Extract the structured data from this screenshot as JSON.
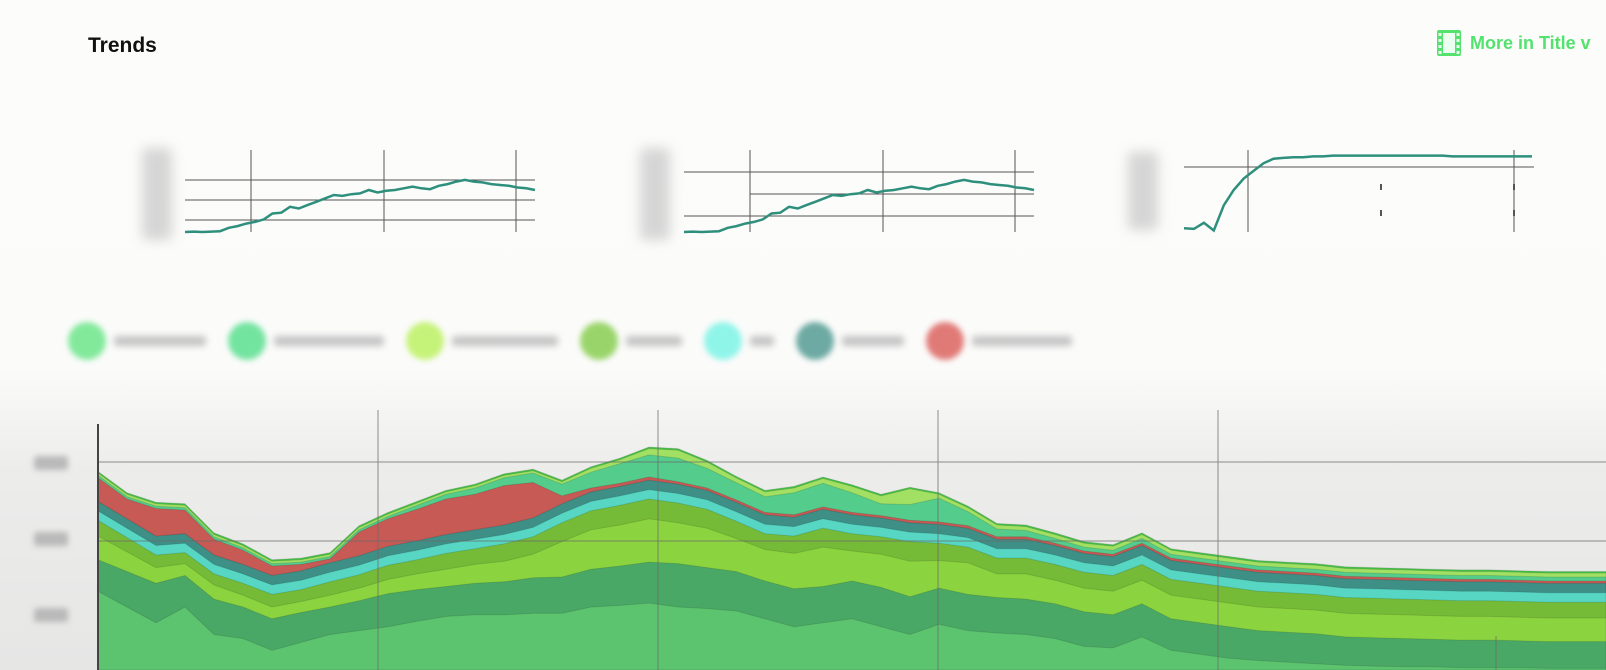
{
  "page": {
    "title": "Trends",
    "more_link": {
      "label": "More in Title v",
      "icon": "film-strip-icon",
      "color": "#54e26f"
    }
  },
  "colors": {
    "sparkline": "#2f8f7d",
    "grid": "#555555"
  },
  "chart_data": [
    {
      "type": "line",
      "x": [
        0,
        1,
        2,
        3,
        4,
        5,
        6,
        7,
        8,
        9,
        10,
        11,
        12,
        13,
        14,
        15,
        16,
        17,
        18,
        19,
        20,
        21,
        22,
        23,
        24,
        25,
        26,
        27,
        28,
        29,
        30,
        31,
        32,
        33,
        34,
        35,
        36,
        37,
        38,
        39,
        40
      ],
      "values": [
        0,
        0.5,
        0,
        0.5,
        1,
        5,
        7,
        10,
        12,
        15,
        22,
        23,
        30,
        28,
        32,
        36,
        40,
        44,
        43,
        45,
        46,
        50,
        47,
        49,
        50,
        52,
        54,
        52,
        51,
        55,
        57,
        60,
        62,
        60,
        59,
        57,
        56,
        55,
        53,
        52,
        50
      ],
      "ylim": [
        0,
        100
      ]
    },
    {
      "type": "line",
      "x": [
        0,
        1,
        2,
        3,
        4,
        5,
        6,
        7,
        8,
        9,
        10,
        11,
        12,
        13,
        14,
        15,
        16,
        17,
        18,
        19,
        20,
        21,
        22,
        23,
        24,
        25,
        26,
        27,
        28,
        29,
        30,
        31,
        32,
        33,
        34,
        35,
        36,
        37,
        38,
        39,
        40
      ],
      "values": [
        0,
        0.5,
        0,
        0.5,
        1,
        5,
        7,
        10,
        12,
        15,
        22,
        23,
        30,
        28,
        32,
        36,
        40,
        44,
        43,
        45,
        46,
        50,
        47,
        49,
        50,
        52,
        54,
        52,
        51,
        55,
        57,
        60,
        62,
        60,
        59,
        57,
        56,
        55,
        53,
        52,
        50
      ],
      "ylim": [
        0,
        100
      ]
    },
    {
      "type": "line",
      "x": [
        0,
        1,
        2,
        3,
        4,
        5,
        6,
        7,
        8,
        9,
        10,
        11,
        12,
        13,
        14,
        15,
        16,
        17,
        18,
        19,
        20,
        21,
        22,
        23,
        24,
        25,
        26,
        27,
        28,
        29,
        30,
        31,
        32,
        33,
        34,
        35
      ],
      "values": [
        5,
        4,
        12,
        2,
        35,
        55,
        70,
        80,
        90,
        96,
        97,
        98,
        98,
        99,
        99,
        100,
        100,
        100,
        100,
        100,
        100,
        100,
        100,
        100,
        100,
        100,
        100,
        99,
        99,
        99,
        99,
        99,
        99,
        99,
        99,
        99
      ],
      "ylim": [
        0,
        110
      ]
    },
    {
      "type": "area",
      "stacked": true,
      "x": [
        0,
        1,
        2,
        3,
        4,
        5,
        6,
        7,
        8,
        9,
        10,
        11,
        12,
        13,
        14,
        15,
        16,
        17,
        18,
        19,
        20,
        21,
        22,
        23,
        24,
        25,
        26,
        27,
        28,
        29,
        30,
        31,
        32,
        33,
        34,
        35,
        36,
        37,
        38,
        39,
        40,
        41,
        42,
        43,
        44,
        45,
        46,
        47,
        48,
        49,
        50,
        51,
        52
      ],
      "series": [
        {
          "color": "#5cc36f",
          "values": [
            100,
            80,
            60,
            80,
            45,
            40,
            25,
            35,
            45,
            50,
            55,
            62,
            68,
            70,
            70,
            72,
            72,
            80,
            82,
            85,
            80,
            78,
            75,
            65,
            55,
            60,
            65,
            55,
            45,
            58,
            50,
            47,
            45,
            40,
            30,
            28,
            42,
            25,
            20,
            15,
            12,
            10,
            8,
            6,
            5,
            4,
            4,
            3,
            3,
            3,
            2,
            2,
            2
          ]
        },
        {
          "color": "#4aa867",
          "values": [
            40,
            45,
            50,
            40,
            45,
            40,
            40,
            38,
            35,
            38,
            42,
            40,
            38,
            40,
            42,
            45,
            46,
            48,
            50,
            52,
            55,
            52,
            50,
            48,
            48,
            46,
            48,
            50,
            48,
            46,
            46,
            45,
            45,
            44,
            44,
            42,
            42,
            40,
            40,
            40,
            38,
            38,
            38,
            36,
            36,
            36,
            35,
            35,
            35,
            34,
            34,
            34,
            34
          ]
        },
        {
          "color": "#8bd43f",
          "values": [
            30,
            25,
            20,
            15,
            18,
            15,
            15,
            14,
            15,
            16,
            18,
            20,
            22,
            24,
            26,
            30,
            45,
            50,
            52,
            55,
            52,
            50,
            42,
            40,
            45,
            50,
            38,
            42,
            45,
            35,
            40,
            30,
            32,
            30,
            30,
            30,
            30,
            30,
            30,
            30,
            30,
            30,
            30,
            30,
            30,
            30,
            30,
            30,
            30,
            30,
            30,
            30,
            30
          ]
        },
        {
          "color": "#76bb38",
          "values": [
            20,
            18,
            16,
            14,
            14,
            15,
            16,
            15,
            17,
            17,
            18,
            18,
            20,
            20,
            22,
            22,
            24,
            24,
            25,
            25,
            25,
            24,
            22,
            20,
            22,
            24,
            22,
            22,
            25,
            22,
            20,
            20,
            20,
            20,
            20,
            20,
            20,
            20,
            20,
            20,
            20,
            20,
            20,
            20,
            20,
            20,
            20,
            20,
            20,
            20,
            20,
            20,
            20
          ]
        },
        {
          "color": "#56d6c3",
          "values": [
            12,
            12,
            12,
            12,
            12,
            12,
            12,
            12,
            12,
            12,
            12,
            12,
            12,
            12,
            12,
            12,
            12,
            12,
            12,
            12,
            12,
            12,
            12,
            12,
            12,
            12,
            12,
            12,
            12,
            12,
            12,
            12,
            12,
            12,
            12,
            12,
            12,
            12,
            12,
            12,
            12,
            12,
            12,
            12,
            12,
            12,
            12,
            12,
            12,
            12,
            12,
            12,
            12
          ]
        },
        {
          "color": "#3e8f86",
          "values": [
            12,
            12,
            12,
            12,
            12,
            12,
            12,
            12,
            12,
            12,
            12,
            12,
            12,
            12,
            12,
            12,
            12,
            12,
            12,
            12,
            12,
            12,
            12,
            12,
            12,
            12,
            12,
            12,
            12,
            12,
            12,
            12,
            12,
            12,
            12,
            12,
            12,
            12,
            12,
            12,
            12,
            12,
            12,
            12,
            12,
            12,
            12,
            12,
            12,
            12,
            12,
            12,
            12
          ]
        },
        {
          "color": "#c85a55",
          "values": [
            30,
            25,
            35,
            30,
            20,
            18,
            12,
            8,
            5,
            30,
            35,
            40,
            45,
            45,
            50,
            45,
            10,
            5,
            4,
            4,
            3,
            3,
            3,
            3,
            3,
            3,
            3,
            3,
            3,
            3,
            3,
            3,
            3,
            3,
            3,
            3,
            3,
            3,
            3,
            3,
            3,
            3,
            3,
            3,
            3,
            3,
            3,
            3,
            3,
            3,
            3,
            3,
            3
          ]
        },
        {
          "color": "#54cc8c",
          "values": [
            3,
            3,
            3,
            3,
            3,
            3,
            3,
            3,
            3,
            3,
            3,
            5,
            6,
            8,
            10,
            12,
            15,
            20,
            25,
            28,
            30,
            25,
            22,
            20,
            28,
            30,
            25,
            15,
            20,
            30,
            18,
            10,
            8,
            6,
            5,
            5,
            6,
            5,
            5,
            5,
            5,
            5,
            5,
            5,
            5,
            5,
            5,
            5,
            5,
            5,
            5,
            5,
            5
          ]
        },
        {
          "color": "#a2e063",
          "values": [
            3,
            3,
            3,
            3,
            3,
            3,
            3,
            3,
            3,
            3,
            3,
            3,
            3,
            3,
            3,
            3,
            3,
            5,
            5,
            8,
            10,
            8,
            6,
            6,
            6,
            6,
            8,
            10,
            20,
            5,
            5,
            5,
            5,
            5,
            5,
            5,
            5,
            5,
            5,
            5,
            5,
            5,
            5,
            5,
            5,
            5,
            5,
            5,
            5,
            5,
            5,
            5,
            5
          ]
        },
        {
          "color": "#48c44a",
          "values": [
            2,
            2,
            2,
            2,
            2,
            2,
            2,
            2,
            2,
            2,
            2,
            2,
            2,
            2,
            2,
            2,
            2,
            2,
            2,
            2,
            2,
            2,
            2,
            2,
            2,
            2,
            2,
            2,
            2,
            2,
            2,
            2,
            2,
            2,
            2,
            2,
            2,
            2,
            2,
            2,
            2,
            2,
            2,
            2,
            2,
            2,
            2,
            2,
            2,
            2,
            2,
            2,
            2
          ]
        }
      ],
      "ylim": [
        0,
        330
      ]
    }
  ],
  "legend": [
    {
      "color": "#5ae37c"
    },
    {
      "color": "#46dc82"
    },
    {
      "color": "#b4f04e"
    },
    {
      "color": "#79c83a"
    },
    {
      "color": "#6cf3e4"
    },
    {
      "color": "#3e8f86"
    },
    {
      "color": "#d8504c"
    }
  ]
}
